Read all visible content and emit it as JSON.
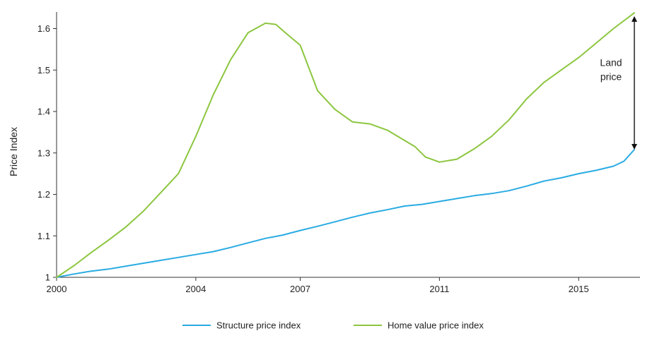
{
  "chart_data": {
    "type": "line",
    "title": "",
    "xlabel": "",
    "ylabel": "Price Index",
    "xlim": [
      2000,
      2016.6
    ],
    "ylim": [
      1,
      1.64
    ],
    "x_ticks": [
      {
        "value": 2000,
        "label": "2000"
      },
      {
        "value": 2004,
        "label": "2004"
      },
      {
        "value": 2007,
        "label": "2007"
      },
      {
        "value": 2011,
        "label": "2011"
      },
      {
        "value": 2015,
        "label": "2015"
      }
    ],
    "y_ticks": [
      {
        "value": 1,
        "label": "1"
      },
      {
        "value": 1.1,
        "label": "1.1"
      },
      {
        "value": 1.2,
        "label": "1.2"
      },
      {
        "value": 1.3,
        "label": "1.3"
      },
      {
        "value": 1.4,
        "label": "1.4"
      },
      {
        "value": 1.5,
        "label": "1.5"
      },
      {
        "value": 1.6,
        "label": "1.6"
      }
    ],
    "grid": false,
    "legend_position": "bottom-center",
    "series": [
      {
        "name": "Structure price index",
        "color": "#29ABE2",
        "points": [
          [
            2000.0,
            1.0
          ],
          [
            2000.5,
            1.008
          ],
          [
            2001.0,
            1.015
          ],
          [
            2001.5,
            1.02
          ],
          [
            2002.0,
            1.027
          ],
          [
            2002.5,
            1.034
          ],
          [
            2003.0,
            1.041
          ],
          [
            2003.5,
            1.048
          ],
          [
            2004.0,
            1.055
          ],
          [
            2004.5,
            1.062
          ],
          [
            2005.0,
            1.072
          ],
          [
            2005.5,
            1.083
          ],
          [
            2006.0,
            1.094
          ],
          [
            2006.5,
            1.102
          ],
          [
            2007.0,
            1.113
          ],
          [
            2007.5,
            1.123
          ],
          [
            2008.0,
            1.134
          ],
          [
            2008.5,
            1.145
          ],
          [
            2009.0,
            1.155
          ],
          [
            2009.5,
            1.163
          ],
          [
            2010.0,
            1.172
          ],
          [
            2010.5,
            1.176
          ],
          [
            2011.0,
            1.183
          ],
          [
            2011.5,
            1.19
          ],
          [
            2012.0,
            1.197
          ],
          [
            2012.5,
            1.202
          ],
          [
            2013.0,
            1.209
          ],
          [
            2013.5,
            1.22
          ],
          [
            2014.0,
            1.232
          ],
          [
            2014.5,
            1.24
          ],
          [
            2015.0,
            1.25
          ],
          [
            2015.5,
            1.258
          ],
          [
            2016.0,
            1.268
          ],
          [
            2016.3,
            1.28
          ],
          [
            2016.6,
            1.308
          ]
        ]
      },
      {
        "name": "Home value price index",
        "color": "#8CC63F",
        "points": [
          [
            2000.0,
            1.0
          ],
          [
            2000.5,
            1.028
          ],
          [
            2001.0,
            1.06
          ],
          [
            2001.5,
            1.09
          ],
          [
            2002.0,
            1.122
          ],
          [
            2002.5,
            1.16
          ],
          [
            2003.0,
            1.205
          ],
          [
            2003.5,
            1.25
          ],
          [
            2004.0,
            1.34
          ],
          [
            2004.5,
            1.44
          ],
          [
            2005.0,
            1.525
          ],
          [
            2005.5,
            1.59
          ],
          [
            2006.0,
            1.613
          ],
          [
            2006.3,
            1.61
          ],
          [
            2006.6,
            1.588
          ],
          [
            2007.0,
            1.56
          ],
          [
            2007.5,
            1.45
          ],
          [
            2008.0,
            1.405
          ],
          [
            2008.5,
            1.375
          ],
          [
            2009.0,
            1.37
          ],
          [
            2009.5,
            1.355
          ],
          [
            2010.0,
            1.33
          ],
          [
            2010.3,
            1.315
          ],
          [
            2010.6,
            1.29
          ],
          [
            2011.0,
            1.278
          ],
          [
            2011.5,
            1.285
          ],
          [
            2012.0,
            1.31
          ],
          [
            2012.5,
            1.34
          ],
          [
            2013.0,
            1.38
          ],
          [
            2013.5,
            1.43
          ],
          [
            2014.0,
            1.47
          ],
          [
            2014.5,
            1.5
          ],
          [
            2015.0,
            1.53
          ],
          [
            2015.5,
            1.565
          ],
          [
            2016.0,
            1.6
          ],
          [
            2016.6,
            1.638
          ]
        ]
      }
    ],
    "annotations": [
      {
        "text_lines": [
          "Land",
          "price"
        ],
        "type": "double-arrow",
        "x": 2016.6,
        "y_from": 1.308,
        "y_to": 1.63
      }
    ]
  }
}
